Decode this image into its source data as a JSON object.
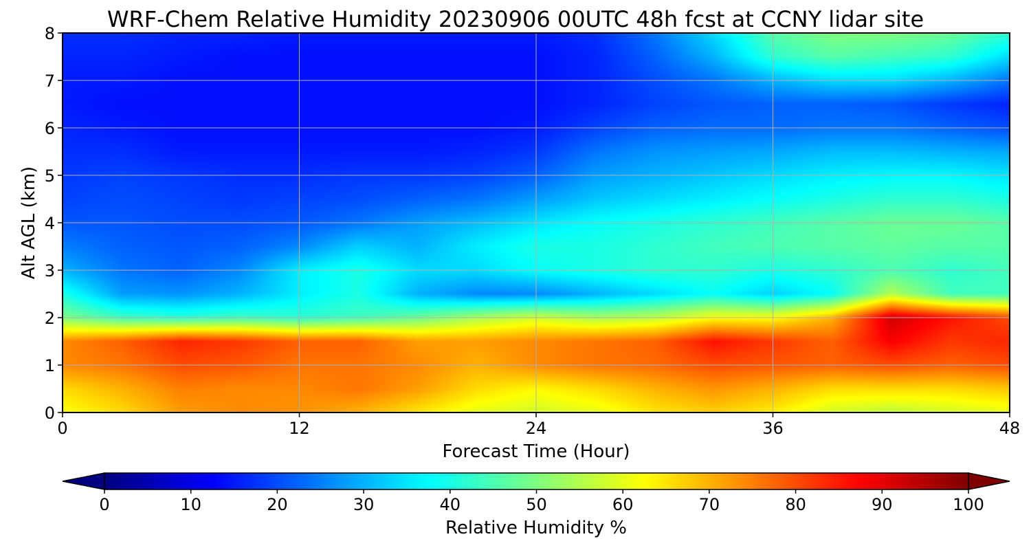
{
  "chart_data": {
    "type": "heatmap",
    "title": "WRF-Chem Relative Humidity 20230906 00UTC 48h fcst at CCNY lidar site",
    "xlabel": "Forecast Time (Hour)",
    "ylabel": "Alt AGL (km)",
    "xlim": [
      0,
      48
    ],
    "ylim": [
      0,
      8
    ],
    "xticks": [
      0,
      12,
      24,
      36,
      48
    ],
    "xtick_labels": [
      "0",
      "12",
      "24",
      "36",
      "48"
    ],
    "yticks": [
      0,
      1,
      2,
      3,
      4,
      5,
      6,
      7,
      8
    ],
    "ytick_labels": [
      "0",
      "1",
      "2",
      "3",
      "4",
      "5",
      "6",
      "7",
      "8"
    ],
    "grid": true,
    "x": [
      0,
      3,
      6,
      9,
      12,
      15,
      18,
      21,
      24,
      27,
      30,
      33,
      36,
      39,
      42,
      45,
      48
    ],
    "y": [
      0,
      0.5,
      1.0,
      1.5,
      2.0,
      2.5,
      3.0,
      3.5,
      4.0,
      4.5,
      5.0,
      5.5,
      6.0,
      6.5,
      7.0,
      7.5,
      8.0
    ],
    "z": [
      [
        62,
        66,
        72,
        74,
        73,
        70,
        65,
        60,
        58,
        60,
        65,
        67,
        64,
        58,
        56,
        58,
        60
      ],
      [
        66,
        70,
        75,
        74,
        74,
        76,
        72,
        66,
        63,
        66,
        70,
        73,
        70,
        66,
        66,
        66,
        68
      ],
      [
        74,
        76,
        80,
        79,
        76,
        76,
        74,
        70,
        74,
        76,
        77,
        80,
        79,
        78,
        80,
        78,
        80
      ],
      [
        74,
        78,
        84,
        82,
        78,
        78,
        72,
        72,
        74,
        76,
        78,
        86,
        82,
        78,
        88,
        82,
        84
      ],
      [
        50,
        44,
        42,
        44,
        42,
        44,
        48,
        54,
        58,
        54,
        56,
        62,
        62,
        70,
        92,
        86,
        80
      ],
      [
        40,
        28,
        27,
        30,
        36,
        40,
        30,
        26,
        26,
        30,
        34,
        38,
        33,
        38,
        55,
        44,
        44
      ],
      [
        30,
        24,
        22,
        26,
        36,
        40,
        34,
        34,
        38,
        40,
        42,
        42,
        40,
        42,
        45,
        42,
        44
      ],
      [
        25,
        22,
        21,
        22,
        26,
        33,
        30,
        36,
        40,
        40,
        42,
        44,
        45,
        46,
        47,
        46,
        46
      ],
      [
        21,
        21,
        20,
        20,
        21,
        24,
        28,
        31,
        35,
        38,
        40,
        42,
        44,
        46,
        48,
        48,
        46
      ],
      [
        19,
        20,
        19,
        18,
        19,
        20,
        22,
        24,
        28,
        32,
        34,
        36,
        38,
        40,
        42,
        42,
        40
      ],
      [
        18,
        19,
        18,
        17,
        17,
        18,
        18,
        19,
        22,
        28,
        30,
        32,
        34,
        36,
        37,
        37,
        35
      ],
      [
        17,
        17,
        15,
        15,
        15,
        15,
        15,
        16,
        18,
        24,
        27,
        28,
        29,
        31,
        31,
        30,
        29
      ],
      [
        16,
        15,
        14,
        14,
        14,
        14,
        14,
        14,
        15,
        19,
        22,
        23,
        23,
        24,
        24,
        22,
        20
      ],
      [
        15,
        14,
        14,
        14,
        14,
        14,
        14,
        14,
        14,
        16,
        19,
        21,
        22,
        22,
        21,
        18,
        16
      ],
      [
        15,
        15,
        14,
        14,
        14,
        14,
        14,
        14,
        14,
        16,
        20,
        24,
        30,
        34,
        34,
        30,
        24
      ],
      [
        16,
        16,
        15,
        14,
        14,
        14,
        14,
        14,
        14,
        16,
        22,
        30,
        42,
        46,
        44,
        42,
        34
      ],
      [
        17,
        17,
        16,
        16,
        15,
        15,
        15,
        15,
        15,
        17,
        24,
        34,
        46,
        50,
        50,
        48,
        42
      ]
    ],
    "colorbar": {
      "label": "Relative Humidity %",
      "ticks": [
        0,
        10,
        20,
        30,
        40,
        50,
        60,
        70,
        80,
        90,
        100
      ],
      "tick_labels": [
        "0",
        "10",
        "20",
        "30",
        "40",
        "50",
        "60",
        "70",
        "80",
        "90",
        "100"
      ],
      "colormap": "jet",
      "extend": "both",
      "vmin": 0,
      "vmax": 100
    }
  }
}
